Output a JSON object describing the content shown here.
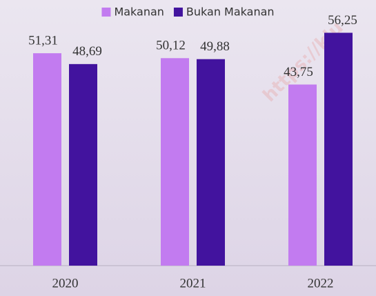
{
  "chart_data": {
    "type": "bar",
    "categories": [
      "2020",
      "2021",
      "2022"
    ],
    "series": [
      {
        "name": "Makanan",
        "color": "#c27bf0",
        "values": [
          51.31,
          50.12,
          43.75
        ],
        "value_labels": [
          "51,31",
          "50,12",
          "43,75"
        ]
      },
      {
        "name": "Bukan Makanan",
        "color": "#42139e",
        "values": [
          48.69,
          49.88,
          56.25
        ],
        "value_labels": [
          "48,69",
          "49,88",
          "56,25"
        ]
      }
    ],
    "ylim": [
      0,
      60
    ],
    "legend": "top",
    "watermark": "https://klu"
  }
}
